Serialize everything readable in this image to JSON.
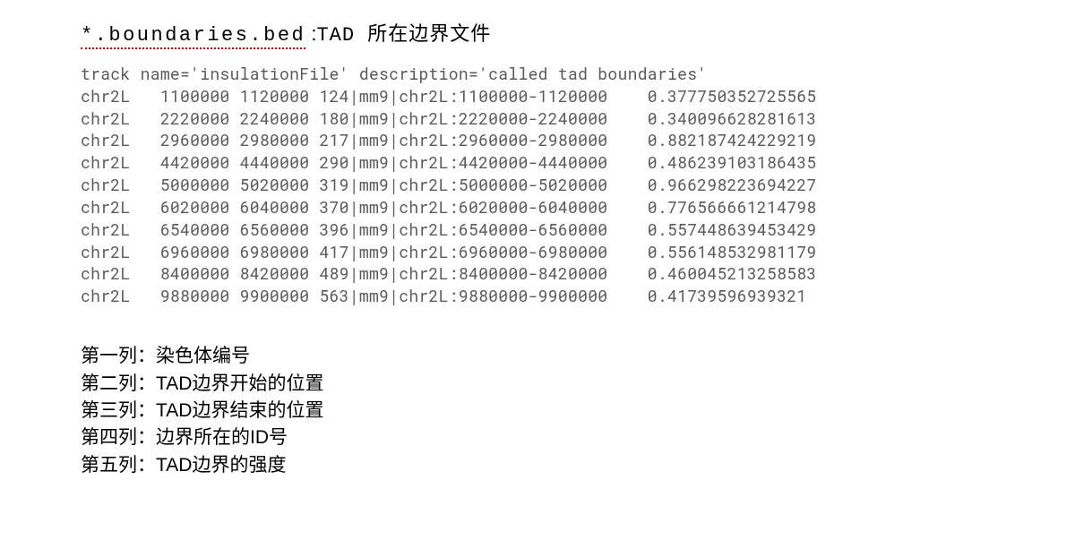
{
  "heading": {
    "filename": "*.boundaries.bed",
    "separator": " :",
    "desc": "TAD 所在边界文件"
  },
  "track_header": "track name='insulationFile' description='called tad boundaries'",
  "rows": [
    {
      "chrom": "chr2L",
      "start": "1100000",
      "end": "1120000",
      "id": "124|mm9|chr2L:1100000-1120000",
      "score": "0.377750352725565"
    },
    {
      "chrom": "chr2L",
      "start": "2220000",
      "end": "2240000",
      "id": "180|mm9|chr2L:2220000-2240000",
      "score": "0.340096628281613"
    },
    {
      "chrom": "chr2L",
      "start": "2960000",
      "end": "2980000",
      "id": "217|mm9|chr2L:2960000-2980000",
      "score": "0.882187424229219"
    },
    {
      "chrom": "chr2L",
      "start": "4420000",
      "end": "4440000",
      "id": "290|mm9|chr2L:4420000-4440000",
      "score": "0.486239103186435"
    },
    {
      "chrom": "chr2L",
      "start": "5000000",
      "end": "5020000",
      "id": "319|mm9|chr2L:5000000-5020000",
      "score": "0.966298223694227"
    },
    {
      "chrom": "chr2L",
      "start": "6020000",
      "end": "6040000",
      "id": "370|mm9|chr2L:6020000-6040000",
      "score": "0.776566661214798"
    },
    {
      "chrom": "chr2L",
      "start": "6540000",
      "end": "6560000",
      "id": "396|mm9|chr2L:6540000-6560000",
      "score": "0.557448639453429"
    },
    {
      "chrom": "chr2L",
      "start": "6960000",
      "end": "6980000",
      "id": "417|mm9|chr2L:6960000-6980000",
      "score": "0.556148532981179"
    },
    {
      "chrom": "chr2L",
      "start": "8400000",
      "end": "8420000",
      "id": "489|mm9|chr2L:8400000-8420000",
      "score": "0.460045213258583"
    },
    {
      "chrom": "chr2L",
      "start": "9880000",
      "end": "9900000",
      "id": "563|mm9|chr2L:9880000-9900000",
      "score": "0.41739596939321"
    }
  ],
  "legend": [
    "第一列：染色体编号",
    "第二列：TAD边界开始的位置",
    "第三列：TAD边界结束的位置",
    "第四列：边界所在的ID号",
    "第五列：TAD边界的强度"
  ],
  "layout": {
    "col_widths": {
      "chrom": 8,
      "start": 8,
      "end": 8,
      "id": 33
    }
  }
}
